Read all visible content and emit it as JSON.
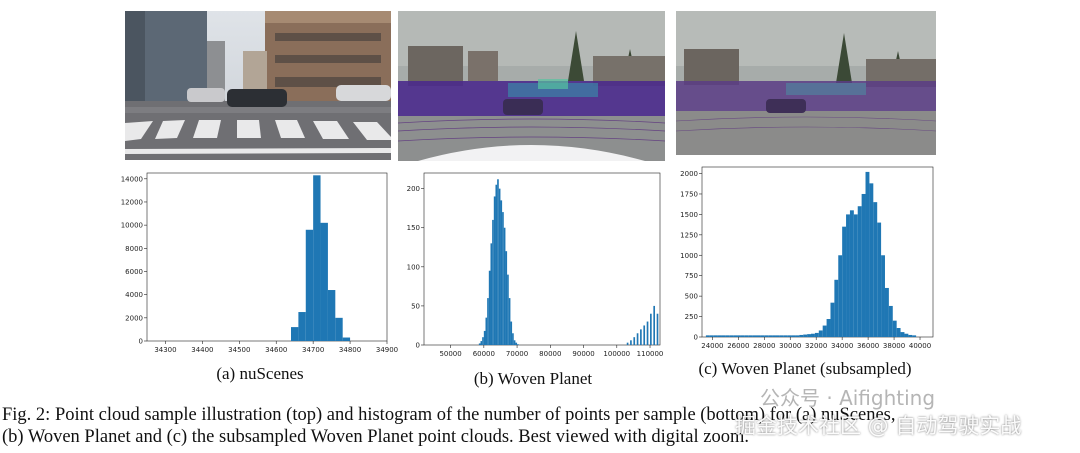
{
  "figure": {
    "subcaptions": {
      "a": "(a) nuScenes",
      "b": "(b) Woven Planet",
      "c": "(c) Woven Planet (subsampled)"
    },
    "caption_line1": "Fig. 2: Point cloud sample illustration (top) and histogram of the number of points per sample (bottom) for (a) nuScenes,",
    "caption_line2": "(b) Woven Planet and (c) the subsampled Woven Planet point clouds. Best viewed with digital zoom."
  },
  "watermark": {
    "top_text": "公众号 · Aifighting",
    "bottom_text": "掘金技术社区 @ 自动驾驶实战"
  },
  "colors": {
    "bar": "#1f77b4",
    "lidar": "#4b2a8c"
  },
  "chart_data": [
    {
      "type": "bar",
      "xlabel": "",
      "ylabel": "",
      "xlim": [
        34250,
        34900
      ],
      "ylim": [
        0,
        14500
      ],
      "xticks": [
        34300,
        34400,
        34500,
        34600,
        34700,
        34800,
        34900
      ],
      "yticks": [
        0,
        2000,
        4000,
        6000,
        8000,
        10000,
        12000,
        14000
      ],
      "bin_width": 20,
      "bins": [
        34640,
        34660,
        34680,
        34700,
        34720,
        34740,
        34760,
        34780
      ],
      "values": [
        1200,
        2500,
        9600,
        14300,
        10200,
        4400,
        2000,
        300
      ]
    },
    {
      "type": "bar",
      "xlabel": "",
      "ylabel": "",
      "xlim": [
        42000,
        113000
      ],
      "ylim": [
        0,
        220
      ],
      "xticks": [
        50000,
        60000,
        70000,
        80000,
        90000,
        100000,
        110000
      ],
      "yticks": [
        0,
        50,
        100,
        150,
        200
      ],
      "bin_width": 500,
      "bins": [
        58500,
        59000,
        59500,
        60000,
        60500,
        61000,
        61500,
        62000,
        62500,
        63000,
        63500,
        64000,
        64500,
        65000,
        65500,
        66000,
        66500,
        67000,
        67500,
        68000,
        68500,
        69000,
        69500,
        70000,
        103000,
        104000,
        105000,
        106000,
        107000,
        108000,
        109000,
        110000,
        111000,
        112000
      ],
      "values": [
        2,
        5,
        10,
        18,
        35,
        60,
        95,
        130,
        160,
        190,
        205,
        212,
        200,
        185,
        170,
        150,
        120,
        90,
        60,
        30,
        15,
        6,
        3,
        1,
        3,
        6,
        10,
        15,
        20,
        25,
        30,
        40,
        50,
        40
      ]
    },
    {
      "type": "bar",
      "xlabel": "",
      "ylabel": "",
      "xlim": [
        23200,
        41000
      ],
      "ylim": [
        0,
        2080
      ],
      "xticks": [
        24000,
        26000,
        28000,
        30000,
        32000,
        34000,
        36000,
        38000,
        40000
      ],
      "yticks": [
        0,
        250,
        500,
        750,
        1000,
        1250,
        1500,
        1750,
        2000
      ],
      "bin_width": 300,
      "bins": [
        23500,
        23800,
        24100,
        24400,
        24700,
        25000,
        25300,
        25600,
        25900,
        26200,
        26500,
        26800,
        27100,
        27400,
        27700,
        28000,
        28300,
        28600,
        28900,
        29200,
        29500,
        29800,
        30100,
        30400,
        30700,
        31000,
        31300,
        31600,
        31900,
        32200,
        32500,
        32800,
        33100,
        33400,
        33700,
        34000,
        34300,
        34600,
        34900,
        35200,
        35500,
        35800,
        36100,
        36400,
        36700,
        37000,
        37300,
        37600,
        37900,
        38200,
        38500,
        38800,
        39100,
        39400
      ],
      "values": [
        20,
        20,
        20,
        20,
        20,
        20,
        20,
        20,
        20,
        20,
        20,
        20,
        20,
        20,
        20,
        20,
        20,
        20,
        20,
        20,
        20,
        20,
        20,
        20,
        25,
        30,
        35,
        40,
        50,
        80,
        140,
        220,
        420,
        700,
        1000,
        1350,
        1500,
        1550,
        1500,
        1600,
        1750,
        2020,
        1880,
        1650,
        1400,
        1000,
        600,
        380,
        200,
        110,
        60,
        40,
        25,
        20
      ]
    }
  ]
}
